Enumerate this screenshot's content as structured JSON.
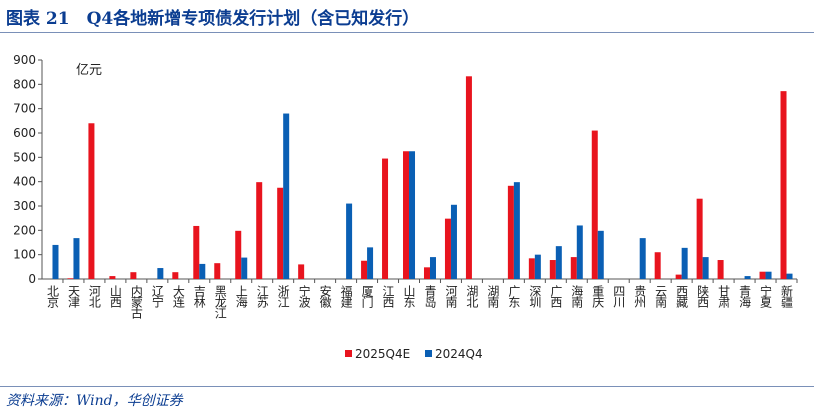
{
  "title": "图表 21　Q4各地新增专项债发行计划（含已知发行）",
  "source": "资料来源：Wind，华创证券",
  "chart_data": {
    "type": "bar",
    "ylabel": "亿元",
    "ylim": [
      0,
      900
    ],
    "yticks": [
      0,
      100,
      200,
      300,
      400,
      500,
      600,
      700,
      800,
      900
    ],
    "grid": false,
    "legend_position": "bottom",
    "categories": [
      "北京",
      "天津",
      "河北",
      "山西",
      "内蒙古",
      "辽宁",
      "大连",
      "吉林",
      "黑龙江",
      "上海",
      "江苏",
      "浙江",
      "宁波",
      "安徽",
      "福建",
      "厦门",
      "江西",
      "山东",
      "青岛",
      "河南",
      "湖北",
      "湖南",
      "广东",
      "深圳",
      "广西",
      "海南",
      "重庆",
      "四川",
      "贵州",
      "云南",
      "西藏",
      "陕西",
      "甘肃",
      "青海",
      "宁夏",
      "新疆"
    ],
    "series": [
      {
        "name": "2025Q4E",
        "color": "#e8141e",
        "values": [
          0,
          3,
          640,
          12,
          28,
          0,
          28,
          218,
          65,
          198,
          398,
          375,
          60,
          0,
          0,
          75,
          495,
          525,
          48,
          248,
          833,
          0,
          383,
          85,
          78,
          90,
          610,
          0,
          0,
          110,
          18,
          330,
          78,
          0,
          30,
          772
        ]
      },
      {
        "name": "2024Q4",
        "color": "#0a5fb4",
        "values": [
          140,
          168,
          0,
          0,
          0,
          45,
          0,
          62,
          0,
          88,
          0,
          680,
          0,
          0,
          310,
          130,
          0,
          525,
          90,
          305,
          0,
          0,
          398,
          100,
          135,
          220,
          198,
          0,
          168,
          0,
          128,
          90,
          0,
          12,
          30,
          22
        ]
      }
    ]
  }
}
